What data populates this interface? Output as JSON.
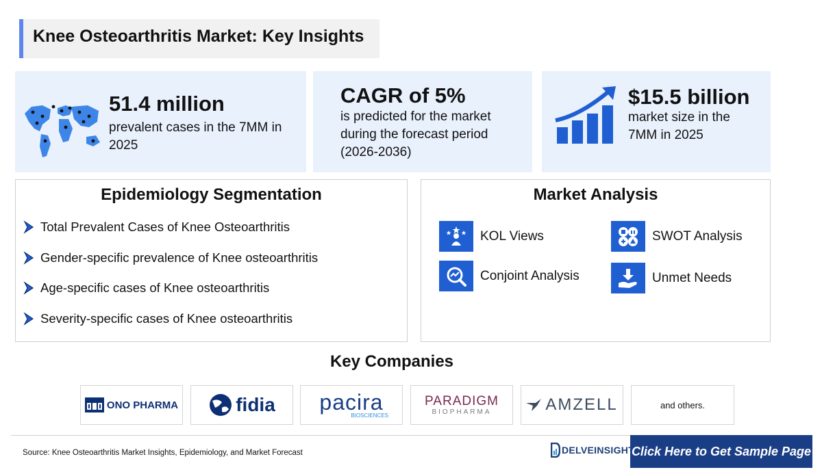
{
  "title": "Knee Osteoarthritis Market: Key Insights",
  "stats": {
    "prevalence": {
      "value": "51.4 million",
      "text": "prevalent cases in the 7MM in 2025",
      "icon": "world-map-icon"
    },
    "cagr": {
      "value": "CAGR of 5%",
      "text": "is predicted for the market during the forecast period (2026-2036)"
    },
    "market_size": {
      "value": "$15.5 billion",
      "text": "market size in the 7MM in 2025",
      "icon": "growth-chart-icon"
    }
  },
  "epidemiology": {
    "heading": "Epidemiology Segmentation",
    "items": [
      "Total Prevalent Cases of Knee Osteoarthritis",
      "Gender-specific prevalence of Knee osteoarthritis",
      "Age-specific cases of Knee osteoarthritis",
      "Severity-specific cases of Knee osteoarthritis"
    ]
  },
  "market_analysis": {
    "heading": "Market Analysis",
    "items": [
      {
        "label": "KOL Views",
        "icon": "kol-views-icon"
      },
      {
        "label": "SWOT Analysis",
        "icon": "swot-icon"
      },
      {
        "label": "Conjoint Analysis",
        "icon": "conjoint-analysis-icon"
      },
      {
        "label": "Unmet Needs",
        "icon": "unmet-needs-icon"
      }
    ]
  },
  "companies": {
    "heading": "Key Companies",
    "logos": [
      {
        "name": "ONO PHARMA"
      },
      {
        "name": "fidia"
      },
      {
        "name": "pacira",
        "sub": "BIOSCIENCES"
      },
      {
        "name": "PARADIGM",
        "sub": "BIOPHARMA"
      },
      {
        "name": "AMZELL"
      }
    ],
    "others": "and others."
  },
  "footer": {
    "source": "Source: Knee Osteoarthritis Market Insights, Epidemiology, and Market Forecast",
    "brand": "DELVEINSIGHT",
    "cta": "Click Here to Get Sample Page"
  },
  "colors": {
    "accent": "#1f5fd1",
    "title_bar": "#5e86ee",
    "stat_background": "#e9f1fd",
    "cta_background": "#1a3e86"
  }
}
